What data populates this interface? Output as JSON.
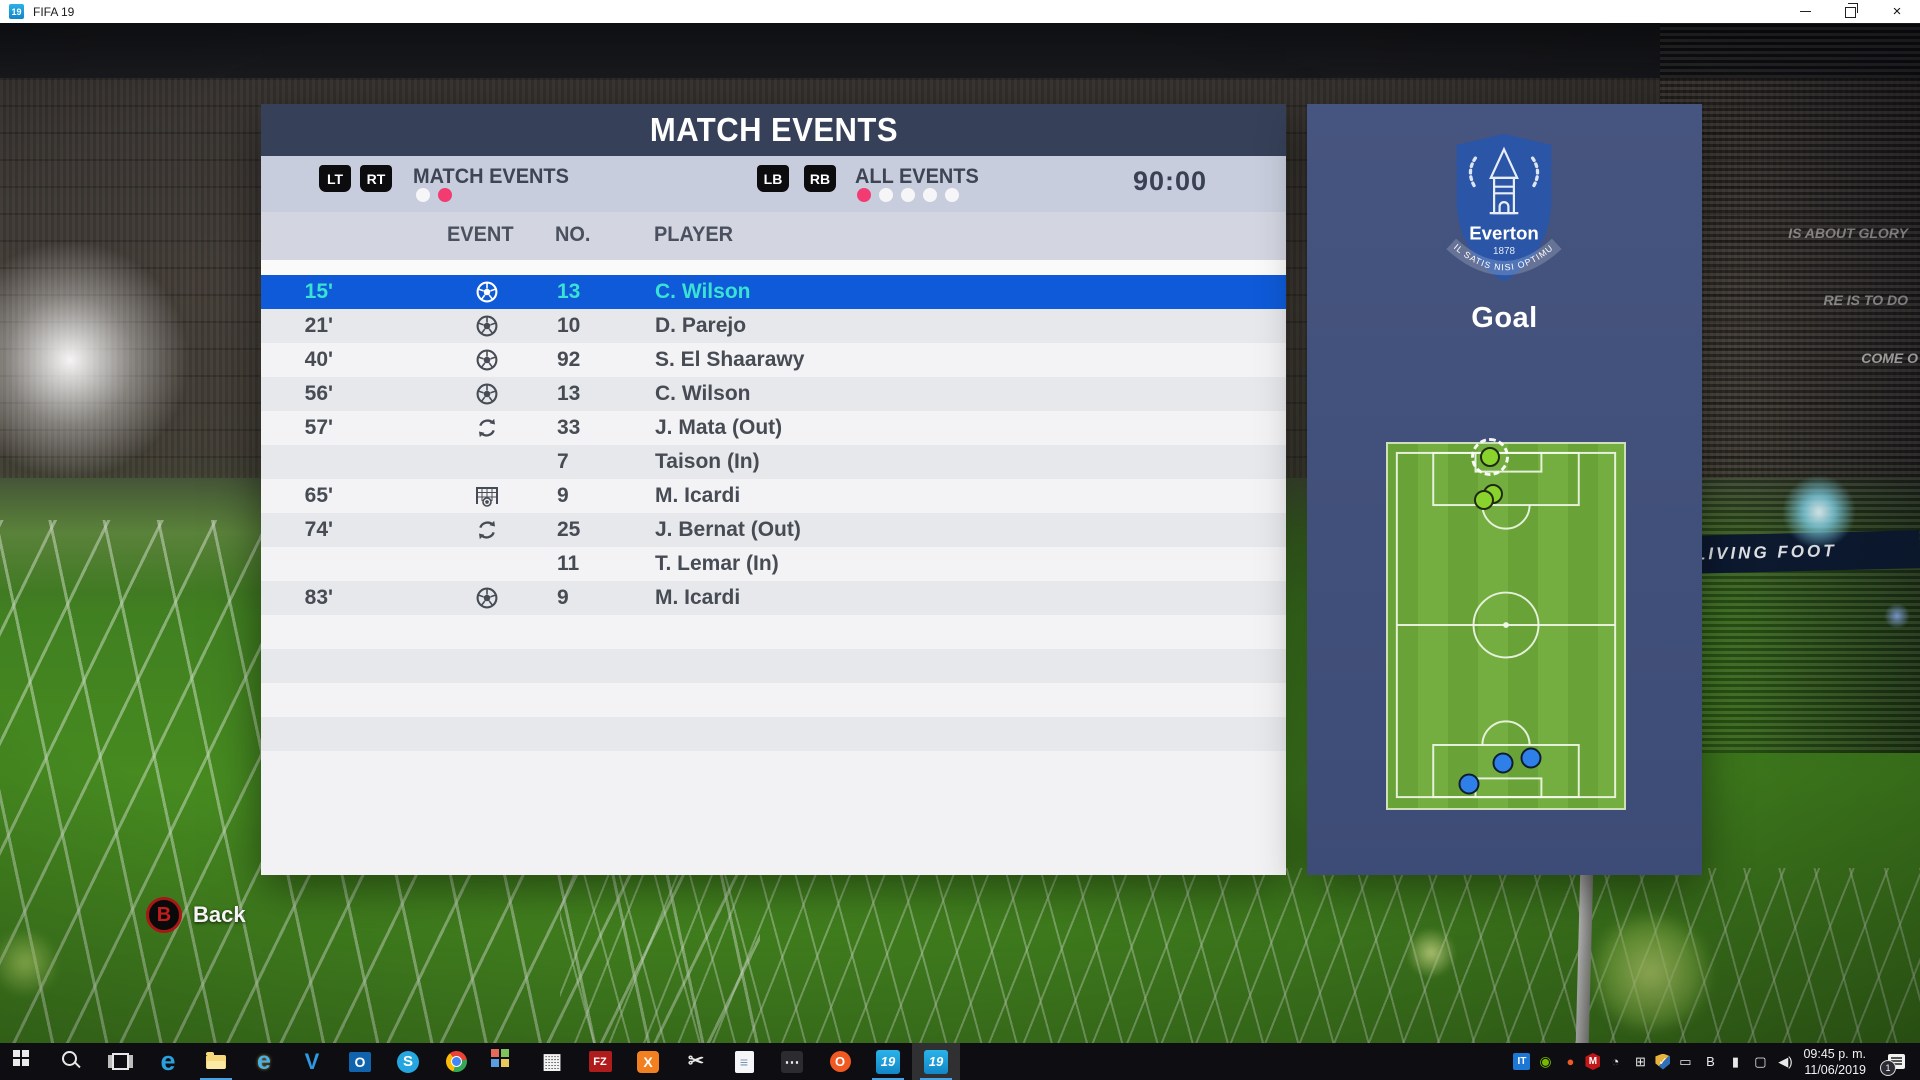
{
  "window": {
    "icon_label": "19",
    "title": "FIFA 19",
    "controls": {
      "close": "×"
    }
  },
  "panel": {
    "title": "MATCH EVENTS",
    "tabs": {
      "left_buttons": [
        "LT",
        "RT"
      ],
      "left_label": "MATCH EVENTS",
      "left_dots": [
        "white",
        "pink"
      ],
      "right_buttons": [
        "LB",
        "RB"
      ],
      "right_label": "ALL EVENTS",
      "right_dots": [
        "pink",
        "white",
        "white",
        "white",
        "white"
      ],
      "clock": "90:00"
    },
    "table": {
      "headers": [
        "EVENT",
        "NO.",
        "PLAYER"
      ],
      "rows": [
        {
          "time": "15'",
          "icon": "goal",
          "no": "13",
          "player": "C. Wilson",
          "selected": true
        },
        {
          "time": "21'",
          "icon": "goal",
          "no": "10",
          "player": "D. Parejo"
        },
        {
          "time": "40'",
          "icon": "goal",
          "no": "92",
          "player": "S. El Shaarawy"
        },
        {
          "time": "56'",
          "icon": "goal",
          "no": "13",
          "player": "C. Wilson"
        },
        {
          "time": "57'",
          "icon": "substitution",
          "no": "33",
          "player": "J. Mata (Out)"
        },
        {
          "time": "",
          "icon": "none",
          "no": "7",
          "player": "Taison (In)"
        },
        {
          "time": "65'",
          "icon": "goal-net",
          "no": "9",
          "player": "M. Icardi"
        },
        {
          "time": "74'",
          "icon": "substitution",
          "no": "25",
          "player": "J. Bernat (Out)"
        },
        {
          "time": "",
          "icon": "none",
          "no": "11",
          "player": "T. Lemar (In)"
        },
        {
          "time": "83'",
          "icon": "goal",
          "no": "9",
          "player": "M. Icardi"
        }
      ],
      "empty_rows": 4
    }
  },
  "side_panel": {
    "crest": {
      "name": "Everton",
      "year": "1878",
      "motto": "NIL SATIS NISI OPTIMUM"
    },
    "event_label": "Goal",
    "pitch_markers": [
      {
        "color": "green",
        "x": 43.3,
        "y": 3.5,
        "selected": true
      },
      {
        "color": "green",
        "x": 44.6,
        "y": 13.6
      },
      {
        "color": "green",
        "x": 40.8,
        "y": 15.5
      },
      {
        "color": "blue",
        "x": 48.8,
        "y": 87.5
      },
      {
        "color": "blue",
        "x": 60.4,
        "y": 86.4
      },
      {
        "color": "blue",
        "x": 34.2,
        "y": 93.5
      }
    ]
  },
  "back_hint": {
    "button": "B",
    "label": "Back"
  },
  "background": {
    "ad_board": "LIVING FOOT",
    "crowd_texts": [
      "IS ABOUT GLORY",
      "RE IS TO DO",
      "COME O"
    ]
  },
  "taskbar": {
    "apps": [
      {
        "name": "start",
        "class": "ic-start"
      },
      {
        "name": "search",
        "class": "ic-search"
      },
      {
        "name": "task-view",
        "class": "ic-taskview"
      },
      {
        "name": "edge",
        "class": "ic-edge",
        "glyph": "e"
      },
      {
        "name": "file-explorer",
        "class": "ic-folder",
        "open": true
      },
      {
        "name": "internet-explorer",
        "class": "ic-ie",
        "glyph": "e"
      },
      {
        "name": "vs-code",
        "class": "ic-vscode",
        "glyph": "V"
      },
      {
        "name": "outlook",
        "class": "ic-outlook",
        "glyph": "O"
      },
      {
        "name": "skype",
        "class": "ic-skype",
        "glyph": "S"
      },
      {
        "name": "chrome",
        "class": "ic-chrome"
      },
      {
        "name": "color-grid-app",
        "class": "ic-colorgrid"
      },
      {
        "name": "calculator",
        "class": "ic-calc",
        "glyph": "▦"
      },
      {
        "name": "filezilla",
        "class": "ic-fz",
        "glyph": "FZ"
      },
      {
        "name": "xampp",
        "class": "ic-xampp",
        "glyph": "X"
      },
      {
        "name": "snipping-tool",
        "class": "ic-snip",
        "glyph": "✂"
      },
      {
        "name": "notepad",
        "class": "ic-notepad",
        "glyph": "≡"
      },
      {
        "name": "share-app",
        "class": "ic-dots",
        "glyph": "⋯"
      },
      {
        "name": "origin",
        "class": "ic-origin",
        "glyph": "O"
      },
      {
        "name": "fifa-19-window-1",
        "class": "ic-fifa",
        "glyph": "19",
        "open": true
      },
      {
        "name": "fifa-19-window-2",
        "class": "ic-fifa",
        "glyph": "19",
        "open": true,
        "active": true
      }
    ],
    "tray": [
      {
        "name": "it-tool",
        "class": "t-it",
        "glyph": "IT"
      },
      {
        "name": "nvidia",
        "class": "t-nvidia",
        "glyph": "◉"
      },
      {
        "name": "origin-tray",
        "class": "t-origin",
        "glyph": "●"
      },
      {
        "name": "mcafee",
        "class": "t-mcafee",
        "glyph": "M"
      },
      {
        "name": "perf-monitor",
        "class": "t-mono",
        "glyph": "◔"
      },
      {
        "name": "display-switch",
        "class": "t-mono",
        "glyph": "⊞"
      },
      {
        "name": "windows-defender",
        "class": "t-defender",
        "glyph": "✓"
      },
      {
        "name": "external-display",
        "class": "t-mono",
        "glyph": "▭"
      },
      {
        "name": "input-method",
        "class": "t-mono",
        "glyph": "B"
      },
      {
        "name": "battery",
        "class": "t-mono",
        "glyph": "▮"
      },
      {
        "name": "network",
        "class": "t-mono",
        "glyph": "▢"
      },
      {
        "name": "volume",
        "class": "t-mono",
        "glyph": "◀)"
      }
    ],
    "clock": {
      "time": "09:45 p. m.",
      "date": "11/06/2019"
    },
    "notification_count": "1"
  },
  "colors": {
    "accent_blue": "#0e5ad8",
    "selected_text": "#3ae2d5",
    "pink_dot": "#f23b71",
    "header_navy": "#364159",
    "side_panel_blue": "#42517d",
    "everton_blue": "#2b55a6",
    "pitch_green": "#6aa43a",
    "home_marker": "#8ad32c",
    "away_marker": "#2f7fe8"
  }
}
